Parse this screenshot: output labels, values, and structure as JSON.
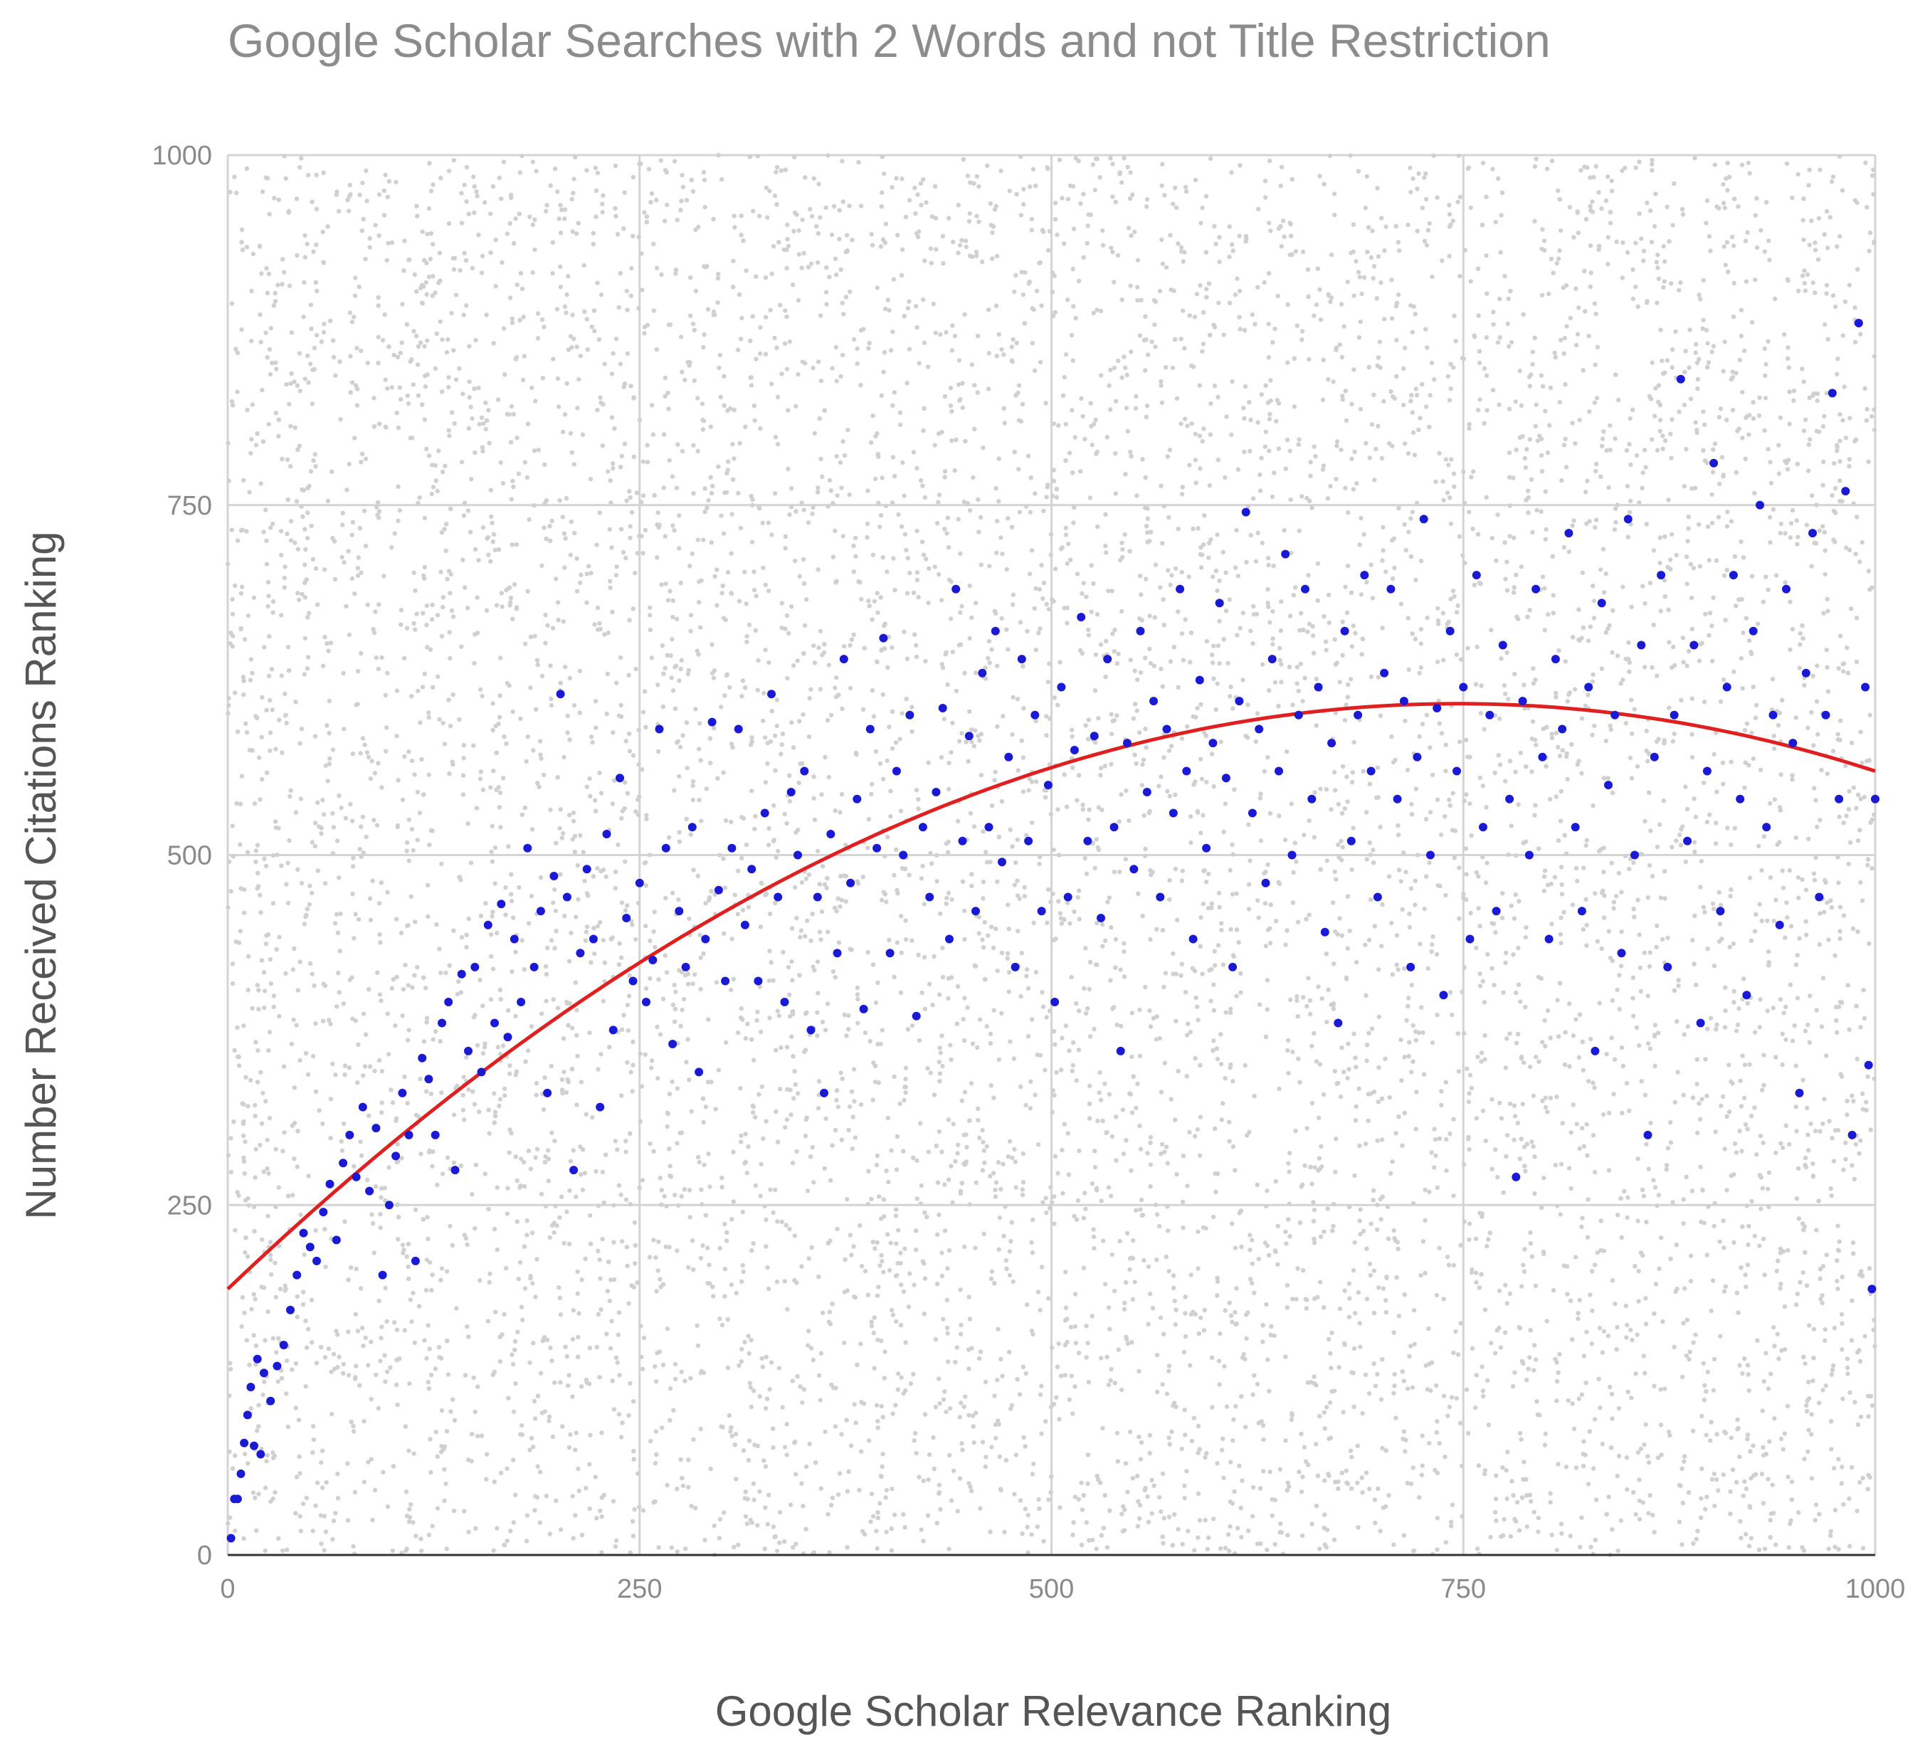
{
  "chart_data": {
    "type": "scatter",
    "title": "Google Scholar Searches with 2 Words and not Title Restriction",
    "xlabel": "Google Scholar Relevance Ranking",
    "ylabel": "Number Received Citations Ranking",
    "xlim": [
      0,
      1000
    ],
    "ylim": [
      0,
      1000
    ],
    "x_ticks": [
      "0",
      "250",
      "500",
      "750",
      "1000"
    ],
    "y_ticks": [
      "0",
      "250",
      "500",
      "750",
      "1000"
    ],
    "grid": true,
    "legend": "none",
    "background_points": {
      "color": "#d0d0d0",
      "description_of_pattern": "dense uniform cloud over the whole plot area",
      "approx_count": 9000
    },
    "series": [
      {
        "color": "#1a1ad4",
        "points": [
          [
            2,
            12
          ],
          [
            4,
            40
          ],
          [
            6,
            40
          ],
          [
            8,
            58
          ],
          [
            10,
            80
          ],
          [
            12,
            100
          ],
          [
            14,
            120
          ],
          [
            16,
            78
          ],
          [
            18,
            140
          ],
          [
            20,
            72
          ],
          [
            22,
            130
          ],
          [
            26,
            110
          ],
          [
            30,
            135
          ],
          [
            34,
            150
          ],
          [
            38,
            175
          ],
          [
            42,
            200
          ],
          [
            46,
            230
          ],
          [
            50,
            220
          ],
          [
            54,
            210
          ],
          [
            58,
            245
          ],
          [
            62,
            265
          ],
          [
            66,
            225
          ],
          [
            70,
            280
          ],
          [
            74,
            300
          ],
          [
            78,
            270
          ],
          [
            82,
            320
          ],
          [
            86,
            260
          ],
          [
            90,
            305
          ],
          [
            94,
            200
          ],
          [
            98,
            250
          ],
          [
            102,
            285
          ],
          [
            106,
            330
          ],
          [
            110,
            300
          ],
          [
            114,
            210
          ],
          [
            118,
            355
          ],
          [
            122,
            340
          ],
          [
            126,
            300
          ],
          [
            130,
            380
          ],
          [
            134,
            395
          ],
          [
            138,
            275
          ],
          [
            142,
            415
          ],
          [
            146,
            360
          ],
          [
            150,
            420
          ],
          [
            154,
            345
          ],
          [
            158,
            450
          ],
          [
            162,
            380
          ],
          [
            166,
            465
          ],
          [
            170,
            370
          ],
          [
            174,
            440
          ],
          [
            178,
            395
          ],
          [
            182,
            505
          ],
          [
            186,
            420
          ],
          [
            190,
            460
          ],
          [
            194,
            330
          ],
          [
            198,
            485
          ],
          [
            202,
            615
          ],
          [
            206,
            470
          ],
          [
            210,
            275
          ],
          [
            214,
            430
          ],
          [
            218,
            490
          ],
          [
            222,
            440
          ],
          [
            226,
            320
          ],
          [
            230,
            515
          ],
          [
            234,
            375
          ],
          [
            238,
            555
          ],
          [
            242,
            455
          ],
          [
            246,
            410
          ],
          [
            250,
            480
          ],
          [
            254,
            395
          ],
          [
            258,
            425
          ],
          [
            262,
            590
          ],
          [
            266,
            505
          ],
          [
            270,
            365
          ],
          [
            274,
            460
          ],
          [
            278,
            420
          ],
          [
            282,
            520
          ],
          [
            286,
            345
          ],
          [
            290,
            440
          ],
          [
            294,
            595
          ],
          [
            298,
            475
          ],
          [
            302,
            410
          ],
          [
            306,
            505
          ],
          [
            310,
            590
          ],
          [
            314,
            450
          ],
          [
            318,
            490
          ],
          [
            322,
            410
          ],
          [
            326,
            530
          ],
          [
            330,
            615
          ],
          [
            334,
            470
          ],
          [
            338,
            395
          ],
          [
            342,
            545
          ],
          [
            346,
            500
          ],
          [
            350,
            560
          ],
          [
            354,
            375
          ],
          [
            358,
            470
          ],
          [
            362,
            330
          ],
          [
            366,
            515
          ],
          [
            370,
            430
          ],
          [
            374,
            640
          ],
          [
            378,
            480
          ],
          [
            382,
            540
          ],
          [
            386,
            390
          ],
          [
            390,
            590
          ],
          [
            394,
            505
          ],
          [
            398,
            655
          ],
          [
            402,
            430
          ],
          [
            406,
            560
          ],
          [
            410,
            500
          ],
          [
            414,
            600
          ],
          [
            418,
            385
          ],
          [
            422,
            520
          ],
          [
            426,
            470
          ],
          [
            430,
            545
          ],
          [
            434,
            605
          ],
          [
            438,
            440
          ],
          [
            442,
            690
          ],
          [
            446,
            510
          ],
          [
            450,
            585
          ],
          [
            454,
            460
          ],
          [
            458,
            630
          ],
          [
            462,
            520
          ],
          [
            466,
            660
          ],
          [
            470,
            495
          ],
          [
            474,
            570
          ],
          [
            478,
            420
          ],
          [
            482,
            640
          ],
          [
            486,
            510
          ],
          [
            490,
            600
          ],
          [
            494,
            460
          ],
          [
            498,
            550
          ],
          [
            502,
            395
          ],
          [
            506,
            620
          ],
          [
            510,
            470
          ],
          [
            514,
            575
          ],
          [
            518,
            670
          ],
          [
            522,
            510
          ],
          [
            526,
            585
          ],
          [
            530,
            455
          ],
          [
            534,
            640
          ],
          [
            538,
            520
          ],
          [
            542,
            360
          ],
          [
            546,
            580
          ],
          [
            550,
            490
          ],
          [
            554,
            660
          ],
          [
            558,
            545
          ],
          [
            562,
            610
          ],
          [
            566,
            470
          ],
          [
            570,
            590
          ],
          [
            574,
            530
          ],
          [
            578,
            690
          ],
          [
            582,
            560
          ],
          [
            586,
            440
          ],
          [
            590,
            625
          ],
          [
            594,
            505
          ],
          [
            598,
            580
          ],
          [
            602,
            680
          ],
          [
            606,
            555
          ],
          [
            610,
            420
          ],
          [
            614,
            610
          ],
          [
            618,
            745
          ],
          [
            622,
            530
          ],
          [
            626,
            590
          ],
          [
            630,
            480
          ],
          [
            634,
            640
          ],
          [
            638,
            560
          ],
          [
            642,
            715
          ],
          [
            646,
            500
          ],
          [
            650,
            600
          ],
          [
            654,
            690
          ],
          [
            658,
            540
          ],
          [
            662,
            620
          ],
          [
            666,
            445
          ],
          [
            670,
            580
          ],
          [
            674,
            380
          ],
          [
            678,
            660
          ],
          [
            682,
            510
          ],
          [
            686,
            600
          ],
          [
            690,
            700
          ],
          [
            694,
            560
          ],
          [
            698,
            470
          ],
          [
            702,
            630
          ],
          [
            706,
            690
          ],
          [
            710,
            540
          ],
          [
            714,
            610
          ],
          [
            718,
            420
          ],
          [
            722,
            570
          ],
          [
            726,
            740
          ],
          [
            730,
            500
          ],
          [
            734,
            605
          ],
          [
            738,
            400
          ],
          [
            742,
            660
          ],
          [
            746,
            560
          ],
          [
            750,
            620
          ],
          [
            754,
            440
          ],
          [
            758,
            700
          ],
          [
            762,
            520
          ],
          [
            766,
            600
          ],
          [
            770,
            460
          ],
          [
            774,
            650
          ],
          [
            778,
            540
          ],
          [
            782,
            270
          ],
          [
            786,
            610
          ],
          [
            790,
            500
          ],
          [
            794,
            690
          ],
          [
            798,
            570
          ],
          [
            802,
            440
          ],
          [
            806,
            640
          ],
          [
            810,
            590
          ],
          [
            814,
            730
          ],
          [
            818,
            520
          ],
          [
            822,
            460
          ],
          [
            826,
            620
          ],
          [
            830,
            360
          ],
          [
            834,
            680
          ],
          [
            838,
            550
          ],
          [
            842,
            600
          ],
          [
            846,
            430
          ],
          [
            850,
            740
          ],
          [
            854,
            500
          ],
          [
            858,
            650
          ],
          [
            862,
            300
          ],
          [
            866,
            570
          ],
          [
            870,
            700
          ],
          [
            874,
            420
          ],
          [
            878,
            600
          ],
          [
            882,
            840
          ],
          [
            886,
            510
          ],
          [
            890,
            650
          ],
          [
            894,
            380
          ],
          [
            898,
            560
          ],
          [
            902,
            780
          ],
          [
            906,
            460
          ],
          [
            910,
            620
          ],
          [
            914,
            700
          ],
          [
            918,
            540
          ],
          [
            922,
            400
          ],
          [
            926,
            660
          ],
          [
            930,
            750
          ],
          [
            934,
            520
          ],
          [
            938,
            600
          ],
          [
            942,
            450
          ],
          [
            946,
            690
          ],
          [
            950,
            580
          ],
          [
            954,
            330
          ],
          [
            958,
            630
          ],
          [
            962,
            730
          ],
          [
            966,
            470
          ],
          [
            970,
            600
          ],
          [
            974,
            830
          ],
          [
            978,
            540
          ],
          [
            982,
            760
          ],
          [
            986,
            300
          ],
          [
            990,
            880
          ],
          [
            994,
            620
          ],
          [
            996,
            350
          ],
          [
            998,
            190
          ],
          [
            1000,
            540
          ]
        ]
      }
    ],
    "trendline": {
      "color": "#e02020",
      "style": "polynomial",
      "coefficients_a_b_c": [
        -0.00075,
        1.12,
        190
      ],
      "description": "y = a*x^2 + b*x + c"
    }
  }
}
